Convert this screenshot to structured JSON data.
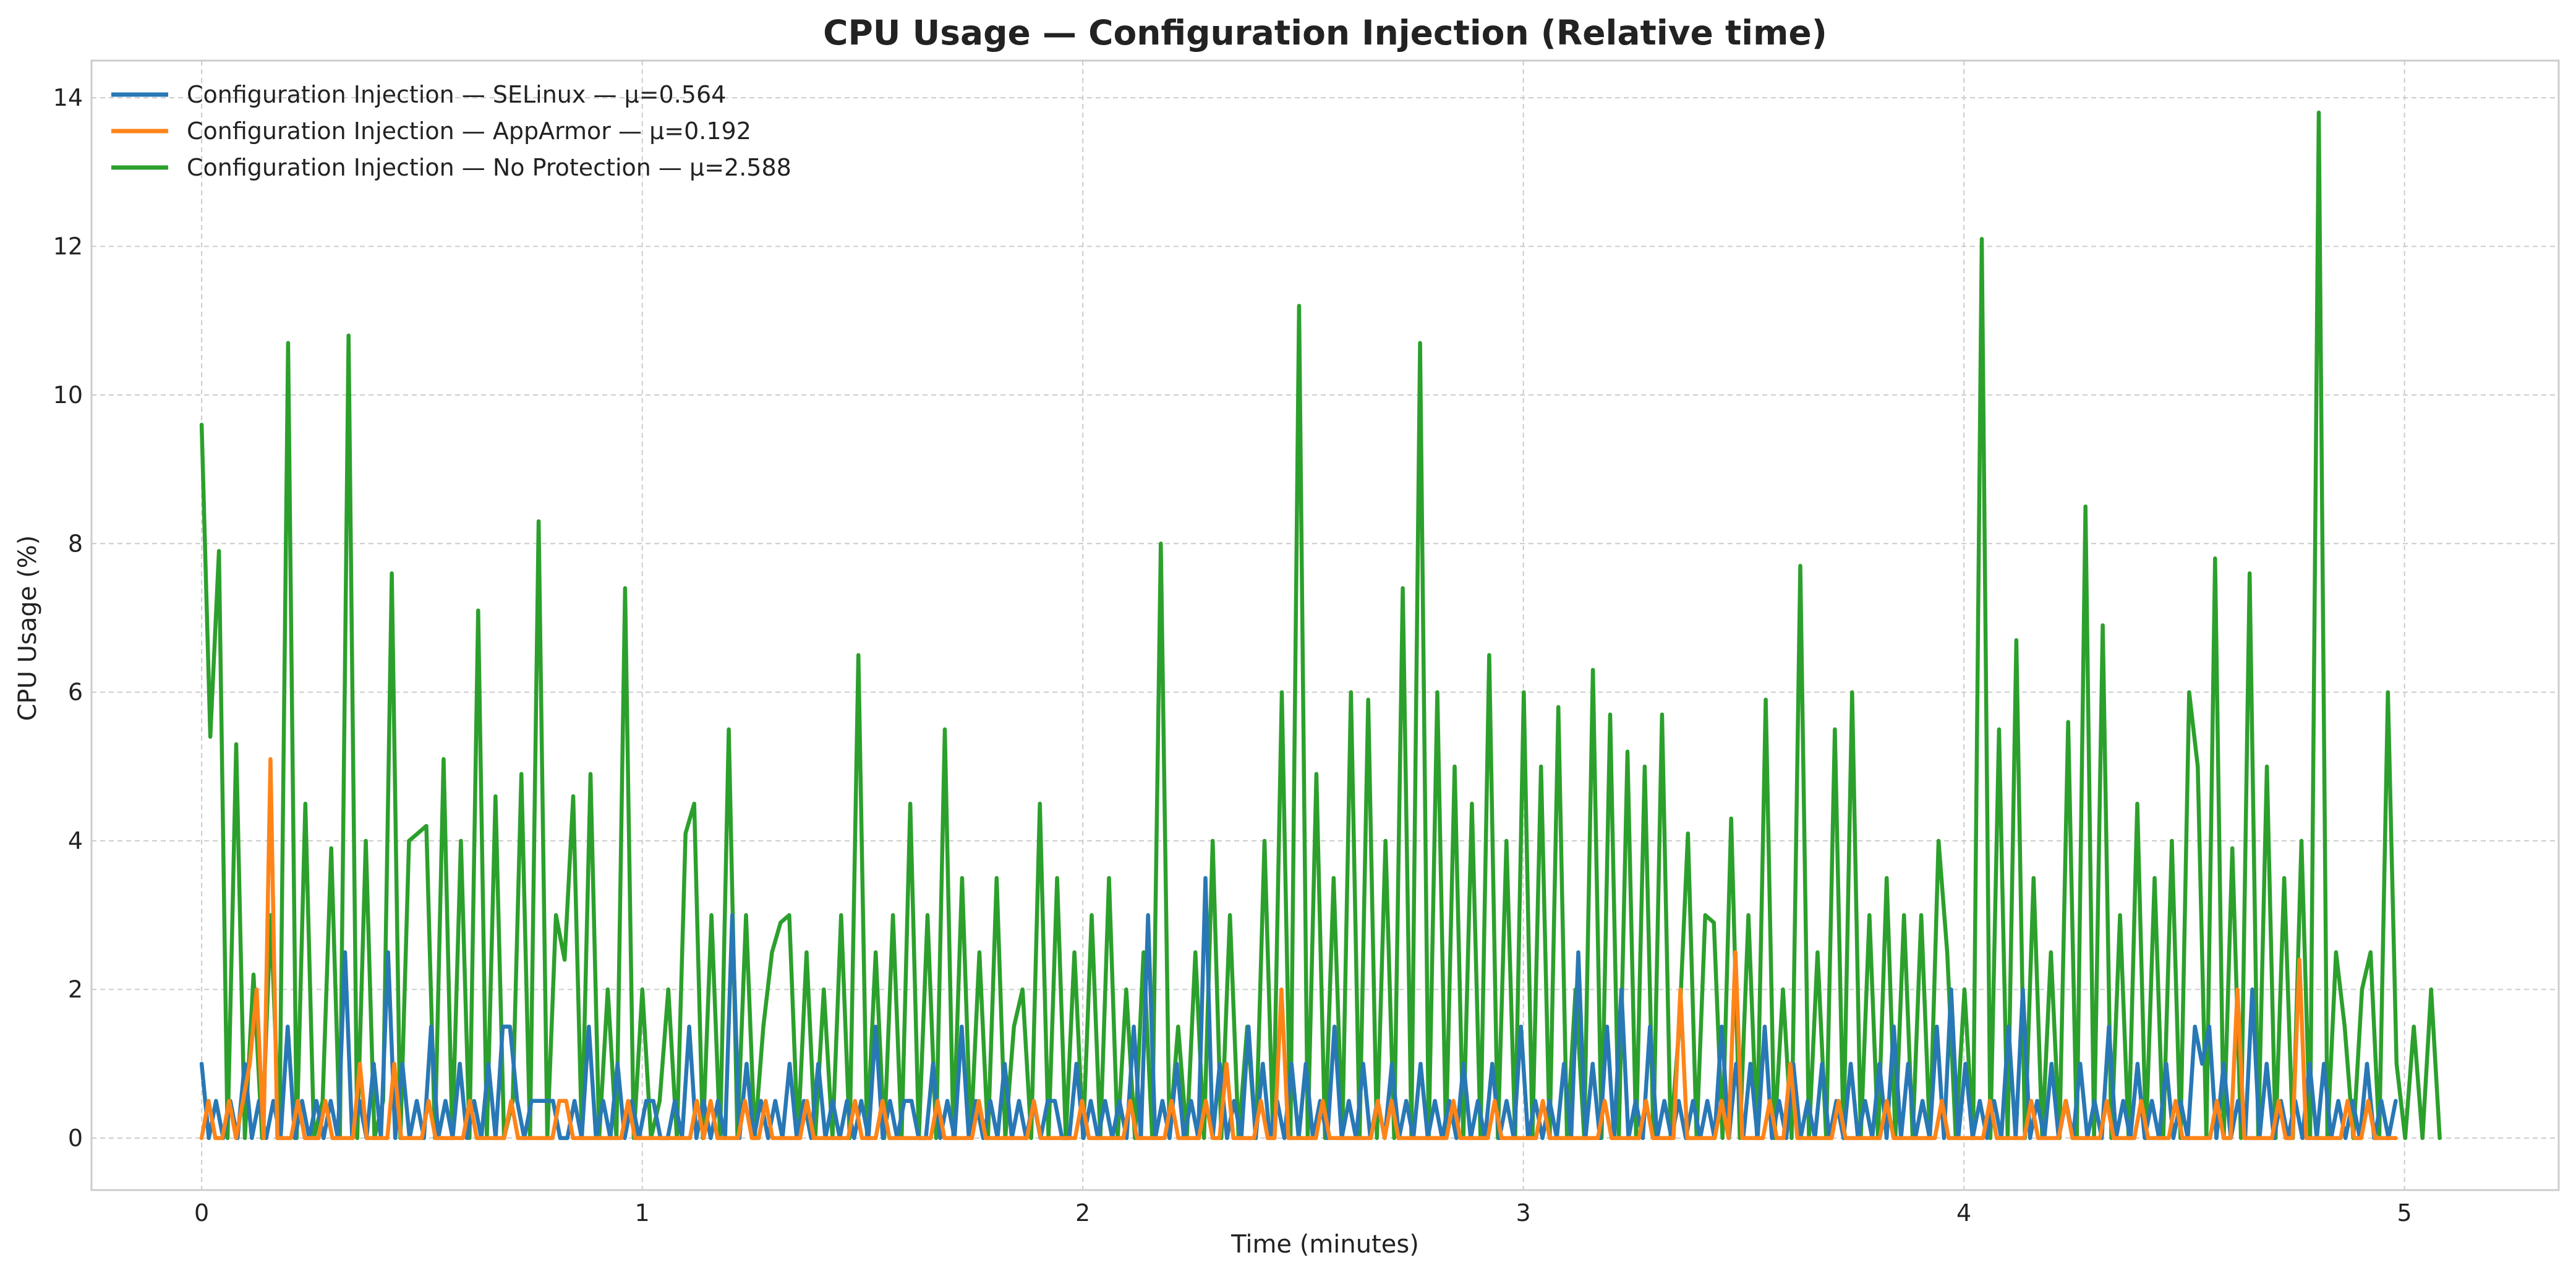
{
  "chart_data": {
    "type": "line",
    "title": "CPU Usage — Configuration Injection (Relative time)",
    "xlabel": "Time (minutes)",
    "ylabel": "CPU Usage (%)",
    "xlim": [
      -0.25,
      5.35
    ],
    "ylim": [
      -0.7,
      14.5
    ],
    "xticks": [
      0,
      1,
      2,
      3,
      4,
      5
    ],
    "yticks": [
      0,
      2,
      4,
      6,
      8,
      10,
      12,
      14
    ],
    "grid": true,
    "legend_position": "top-left",
    "colors": [
      "#2878b5",
      "#ff8418",
      "#2ca02c"
    ],
    "series": [
      {
        "name": "Configuration Injection — SELinux — μ=0.564",
        "x_start": 0,
        "x_end": 4.98,
        "values": [
          1.0,
          0,
          0.5,
          0,
          0.5,
          0,
          1.0,
          0,
          0.5,
          0,
          0.5,
          0,
          1.5,
          0,
          0.5,
          0,
          0.5,
          0,
          0.5,
          0,
          2.5,
          0,
          0.5,
          0,
          1.0,
          0,
          2.5,
          0,
          1.0,
          0,
          0.5,
          0,
          1.5,
          0,
          0.5,
          0,
          1.0,
          0,
          0.5,
          0,
          1.0,
          0,
          1.5,
          1.5,
          0.5,
          0,
          0.5,
          0.5,
          0.5,
          0.5,
          0,
          0,
          0.5,
          0,
          1.5,
          0,
          0.5,
          0,
          1.0,
          0,
          0.5,
          0,
          0.5,
          0.5,
          0,
          0,
          0.5,
          0,
          1.5,
          0,
          0.5,
          0,
          0.5,
          0,
          3.0,
          0,
          1.0,
          0,
          0.5,
          0,
          0.5,
          0,
          1.0,
          0,
          0.5,
          0,
          1.0,
          0,
          0.5,
          0,
          0.5,
          0,
          0.5,
          0,
          1.5,
          0,
          0.5,
          0,
          0.5,
          0.5,
          0,
          0,
          1.0,
          0,
          0.5,
          0,
          1.5,
          0,
          0.5,
          0,
          0.5,
          0,
          1.0,
          0,
          0.5,
          0,
          0.5,
          0,
          0.5,
          0.5,
          0,
          0,
          1.0,
          0,
          0.5,
          0,
          0.5,
          0,
          0.5,
          0,
          1.5,
          0,
          3.0,
          0,
          0.5,
          0,
          1.0,
          0,
          0.5,
          0,
          3.5,
          0,
          1.0,
          0,
          0.5,
          0,
          1.5,
          0,
          1.0,
          0,
          0.5,
          0,
          1.0,
          0,
          1.0,
          0,
          0.5,
          0,
          1.5,
          0,
          0.5,
          0,
          1.0,
          0,
          0.5,
          0,
          1.0,
          0,
          0.5,
          0,
          1.0,
          0,
          0.5,
          0,
          0.5,
          0,
          1.0,
          0,
          0.5,
          0,
          1.0,
          0,
          0.5,
          0,
          1.5,
          0,
          0.5,
          0,
          0.5,
          0,
          1.0,
          0,
          2.5,
          0,
          1.0,
          0,
          1.5,
          0,
          2.0,
          0,
          0.5,
          0,
          1.5,
          0,
          0.5,
          0,
          0.5,
          0,
          0.5,
          0,
          0.5,
          0,
          1.5,
          0,
          1.0,
          0,
          1.0,
          0,
          1.5,
          0,
          0.5,
          0,
          1.0,
          0,
          0.5,
          0,
          1.0,
          0,
          0.5,
          0,
          1.0,
          0,
          0.5,
          0,
          1.0,
          0,
          1.5,
          0,
          1.0,
          0,
          0.5,
          0,
          1.5,
          0,
          2.0,
          0,
          1.0,
          0,
          0.5,
          0,
          0.5,
          0,
          1.5,
          0,
          2.0,
          0,
          0.5,
          0,
          1.0,
          0,
          0.5,
          0,
          1.0,
          0,
          0.5,
          0,
          1.5,
          0,
          0.5,
          0,
          1.0,
          0,
          0.5,
          0,
          1.0,
          0,
          0.5,
          0,
          1.5,
          1.0,
          1.5,
          0,
          1.0,
          0,
          0.5,
          0,
          2.0,
          0,
          1.0,
          0,
          0.5,
          0,
          0.5,
          0,
          1.0,
          0,
          1.0,
          0,
          0.5,
          0,
          0.5,
          0,
          1.0,
          0,
          0.5,
          0,
          0.5
        ]
      },
      {
        "name": "Configuration Injection — AppArmor — μ=0.192",
        "x_start": 0,
        "x_end": 4.98,
        "values": [
          0,
          0.5,
          0,
          0,
          0.5,
          0,
          0.5,
          1.0,
          2.0,
          0,
          5.1,
          0,
          0,
          0,
          0.5,
          0,
          0,
          0,
          0.5,
          0,
          0,
          0,
          0,
          1.0,
          0,
          0,
          0,
          0,
          1.0,
          0,
          0,
          0,
          0,
          0.5,
          0,
          0,
          0,
          0,
          0,
          0.5,
          0,
          0,
          0,
          0,
          0,
          0.5,
          0,
          0,
          0,
          0,
          0,
          0,
          0.5,
          0.5,
          0,
          0,
          0,
          0,
          0,
          0,
          0,
          0,
          0.5,
          0,
          0,
          0,
          0,
          0,
          0,
          0,
          0,
          0,
          0.5,
          0,
          0.5,
          0,
          0,
          0,
          0,
          0.5,
          0,
          0,
          0.5,
          0,
          0,
          0,
          0,
          0,
          0.5,
          0,
          0,
          0,
          0,
          0,
          0,
          0.5,
          0,
          0,
          0,
          0.5,
          0,
          0,
          0,
          0,
          0,
          0,
          0,
          0.5,
          0,
          0,
          0,
          0,
          0,
          0.5,
          0,
          0,
          0,
          0,
          0,
          0,
          0,
          0.5,
          0,
          0,
          0,
          0,
          0,
          0,
          0.5,
          0,
          0,
          0,
          0,
          0,
          0,
          0.5,
          0,
          0,
          0,
          0,
          0,
          0.5,
          0,
          0,
          0,
          0,
          0.5,
          0,
          0,
          1.0,
          0,
          0,
          0,
          0,
          0.5,
          0,
          0,
          2.0,
          0,
          0,
          0,
          0,
          0,
          0.5,
          0,
          0,
          0,
          0,
          0,
          0,
          0,
          0.5,
          0,
          0.5,
          0,
          0,
          0,
          0,
          0,
          0,
          0,
          0,
          0.5,
          0,
          0,
          0,
          0,
          0,
          0.5,
          0,
          0,
          0,
          0,
          0,
          0,
          0.5,
          0,
          0,
          0,
          0,
          0,
          0,
          0,
          0,
          0.5,
          0,
          0,
          0,
          0,
          0,
          0.5,
          0,
          0,
          0,
          0,
          2.0,
          0,
          0,
          0,
          0,
          0,
          0.5,
          0,
          2.5,
          0,
          0,
          0,
          0,
          0.5,
          0,
          0,
          1.0,
          0,
          0,
          0,
          0,
          0,
          0,
          0.5,
          0,
          0,
          0,
          0,
          0,
          0,
          0.5,
          0,
          0,
          0,
          0,
          0,
          0,
          0,
          0.5,
          0,
          0,
          0,
          0,
          0,
          0,
          0.5,
          0,
          0,
          0,
          0,
          0,
          0.5,
          0,
          0,
          0,
          0,
          0.5,
          0,
          0,
          0,
          0,
          0,
          0.5,
          0,
          0,
          0,
          0,
          0.5,
          0,
          0,
          0,
          0,
          0.5,
          0,
          0,
          0,
          0,
          0,
          0.5,
          0,
          0,
          2.0,
          0,
          0,
          0,
          0,
          0,
          0.5,
          0,
          0,
          2.4,
          0,
          0,
          0,
          0,
          0,
          0,
          0.5,
          0,
          0,
          0.5,
          0,
          0,
          0,
          0
        ]
      },
      {
        "name": "Configuration Injection — No Protection — μ=2.588",
        "x_start": 0,
        "x_end": 5.08,
        "values": [
          9.6,
          5.4,
          7.9,
          0,
          5.3,
          0,
          2.2,
          0,
          3.0,
          0,
          10.7,
          0,
          4.5,
          0,
          0.5,
          3.9,
          0,
          10.8,
          0,
          4.0,
          0,
          0.5,
          7.6,
          0,
          4.0,
          4.1,
          4.2,
          0,
          5.1,
          0,
          4.0,
          0,
          7.1,
          0,
          4.6,
          0,
          0.5,
          4.9,
          0,
          8.3,
          0,
          3.0,
          2.4,
          4.6,
          0,
          4.9,
          0,
          2.0,
          0,
          7.4,
          0,
          2.0,
          0,
          0.5,
          2.0,
          0,
          4.1,
          4.5,
          0,
          3.0,
          0,
          5.5,
          0,
          3.0,
          0,
          1.5,
          2.5,
          2.9,
          3.0,
          0,
          2.5,
          0,
          2.0,
          0,
          3.0,
          0,
          6.5,
          0,
          2.5,
          0,
          3.0,
          0,
          4.5,
          0,
          3.0,
          0,
          5.5,
          0,
          3.5,
          0,
          2.5,
          0,
          3.5,
          0,
          1.5,
          2.0,
          0,
          4.5,
          0,
          3.5,
          0,
          2.5,
          0,
          3.0,
          0,
          3.5,
          0,
          2.0,
          0,
          2.5,
          0,
          8.0,
          0,
          1.5,
          0,
          2.5,
          0,
          4.0,
          0,
          3.0,
          0,
          1.5,
          0,
          4.0,
          0,
          6.0,
          0,
          11.2,
          0,
          4.9,
          0,
          3.5,
          0,
          6.0,
          0,
          5.9,
          0,
          4.0,
          0,
          7.4,
          0,
          10.7,
          0,
          6.0,
          0,
          5.0,
          0,
          4.5,
          0,
          6.5,
          0,
          4.0,
          0,
          6.0,
          0,
          5.0,
          0,
          5.8,
          0,
          2.0,
          0,
          6.3,
          0,
          5.7,
          0,
          5.2,
          0,
          5.0,
          0,
          5.7,
          0,
          1.5,
          4.1,
          0,
          3.0,
          2.9,
          0,
          4.3,
          0,
          3.0,
          0,
          5.9,
          0,
          2.0,
          0,
          7.7,
          0,
          2.5,
          0,
          5.5,
          0,
          6.0,
          0,
          3.0,
          0,
          3.5,
          0,
          3.0,
          0,
          3.0,
          0,
          4.0,
          2.5,
          0,
          2.0,
          0,
          12.1,
          0,
          5.5,
          0,
          6.7,
          0,
          3.5,
          0,
          2.5,
          0,
          5.6,
          0,
          8.5,
          0,
          6.9,
          0,
          3.0,
          0,
          4.5,
          0,
          3.5,
          0,
          4.0,
          0,
          6.0,
          5.0,
          0,
          7.8,
          0,
          3.9,
          0,
          7.6,
          0,
          5.0,
          0,
          3.5,
          0,
          4.0,
          0,
          13.8,
          0,
          2.5,
          1.5,
          0,
          2.0,
          2.5,
          0,
          6.0,
          1.0,
          0,
          1.5,
          0,
          2.0,
          0
        ]
      }
    ]
  }
}
